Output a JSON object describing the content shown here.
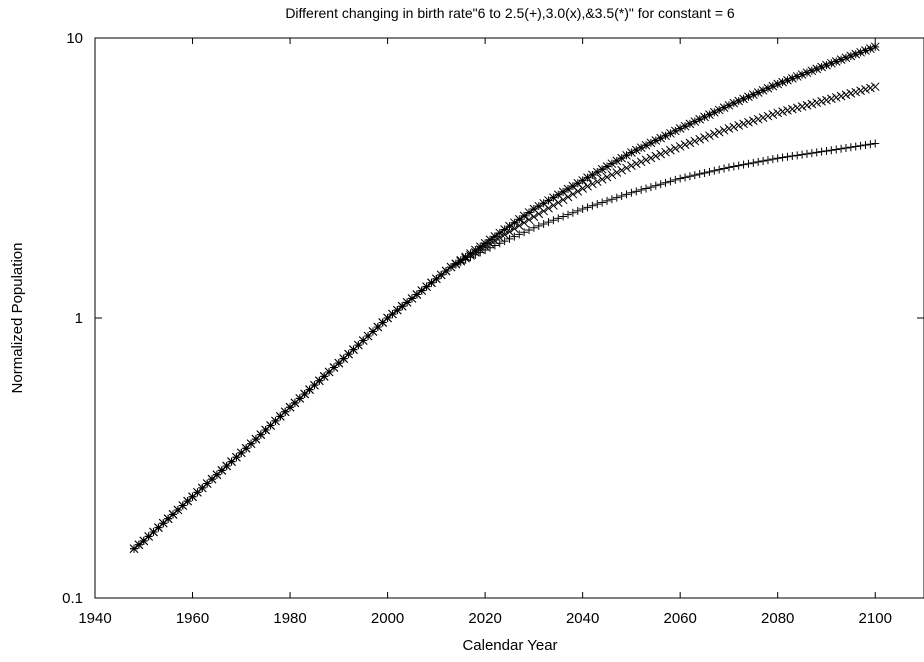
{
  "chart_data": {
    "type": "scatter",
    "title": "Different changing in birth rate\"6 to 2.5(+),3.0(x),&3.5(*)\" for constant = 6",
    "xlabel": "Calendar Year",
    "ylabel": "Normalized Population",
    "xlim": [
      1940,
      2110
    ],
    "ylim": [
      0.1,
      10
    ],
    "y_scale": "log",
    "grid": false,
    "legend": "none",
    "x_ticks": [
      1940,
      1960,
      1980,
      2000,
      2020,
      2040,
      2060,
      2080,
      2100
    ],
    "x_tick_labels": [
      "1940",
      "1960",
      "1980",
      "2000",
      "2020",
      "2040",
      "2060",
      "2080",
      "2100"
    ],
    "y_ticks": [
      0.1,
      1,
      10
    ],
    "y_tick_labels": [
      "0.1",
      "1",
      "10"
    ],
    "x": [
      1948,
      1950,
      1960,
      1970,
      1980,
      1990,
      2000,
      2010,
      2013,
      2020,
      2030,
      2040,
      2050,
      2060,
      2070,
      2080,
      2090,
      2100
    ],
    "series": [
      {
        "marker": "plus",
        "values": [
          0.15,
          0.16,
          0.23,
          0.33,
          0.48,
          0.69,
          1.0,
          1.38,
          1.52,
          1.75,
          2.1,
          2.45,
          2.8,
          3.15,
          3.45,
          3.72,
          3.95,
          4.2
        ]
      },
      {
        "marker": "x",
        "values": [
          0.15,
          0.16,
          0.23,
          0.33,
          0.48,
          0.69,
          1.0,
          1.38,
          1.52,
          1.8,
          2.3,
          2.9,
          3.5,
          4.1,
          4.75,
          5.4,
          6.0,
          6.7
        ]
      },
      {
        "marker": "star",
        "values": [
          0.15,
          0.16,
          0.23,
          0.33,
          0.48,
          0.69,
          1.0,
          1.38,
          1.52,
          1.85,
          2.45,
          3.1,
          3.9,
          4.75,
          5.75,
          6.85,
          8.0,
          9.3
        ]
      }
    ]
  }
}
